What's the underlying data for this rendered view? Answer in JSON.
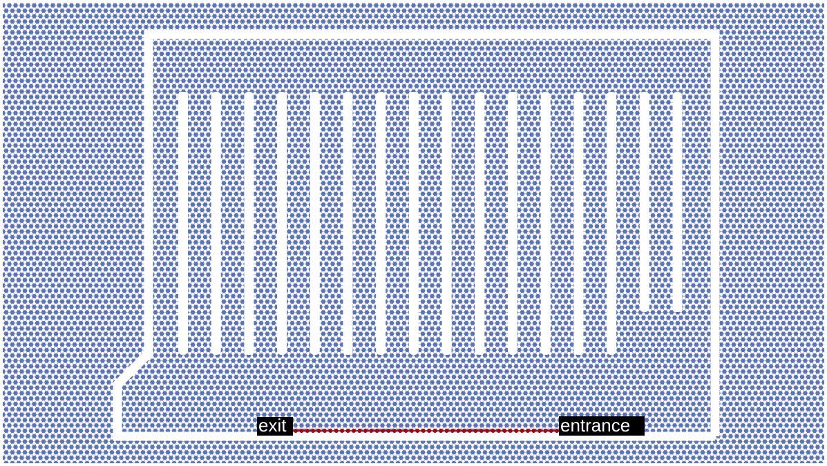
{
  "labels": {
    "exit": "exit",
    "entrance": "entrance"
  }
}
